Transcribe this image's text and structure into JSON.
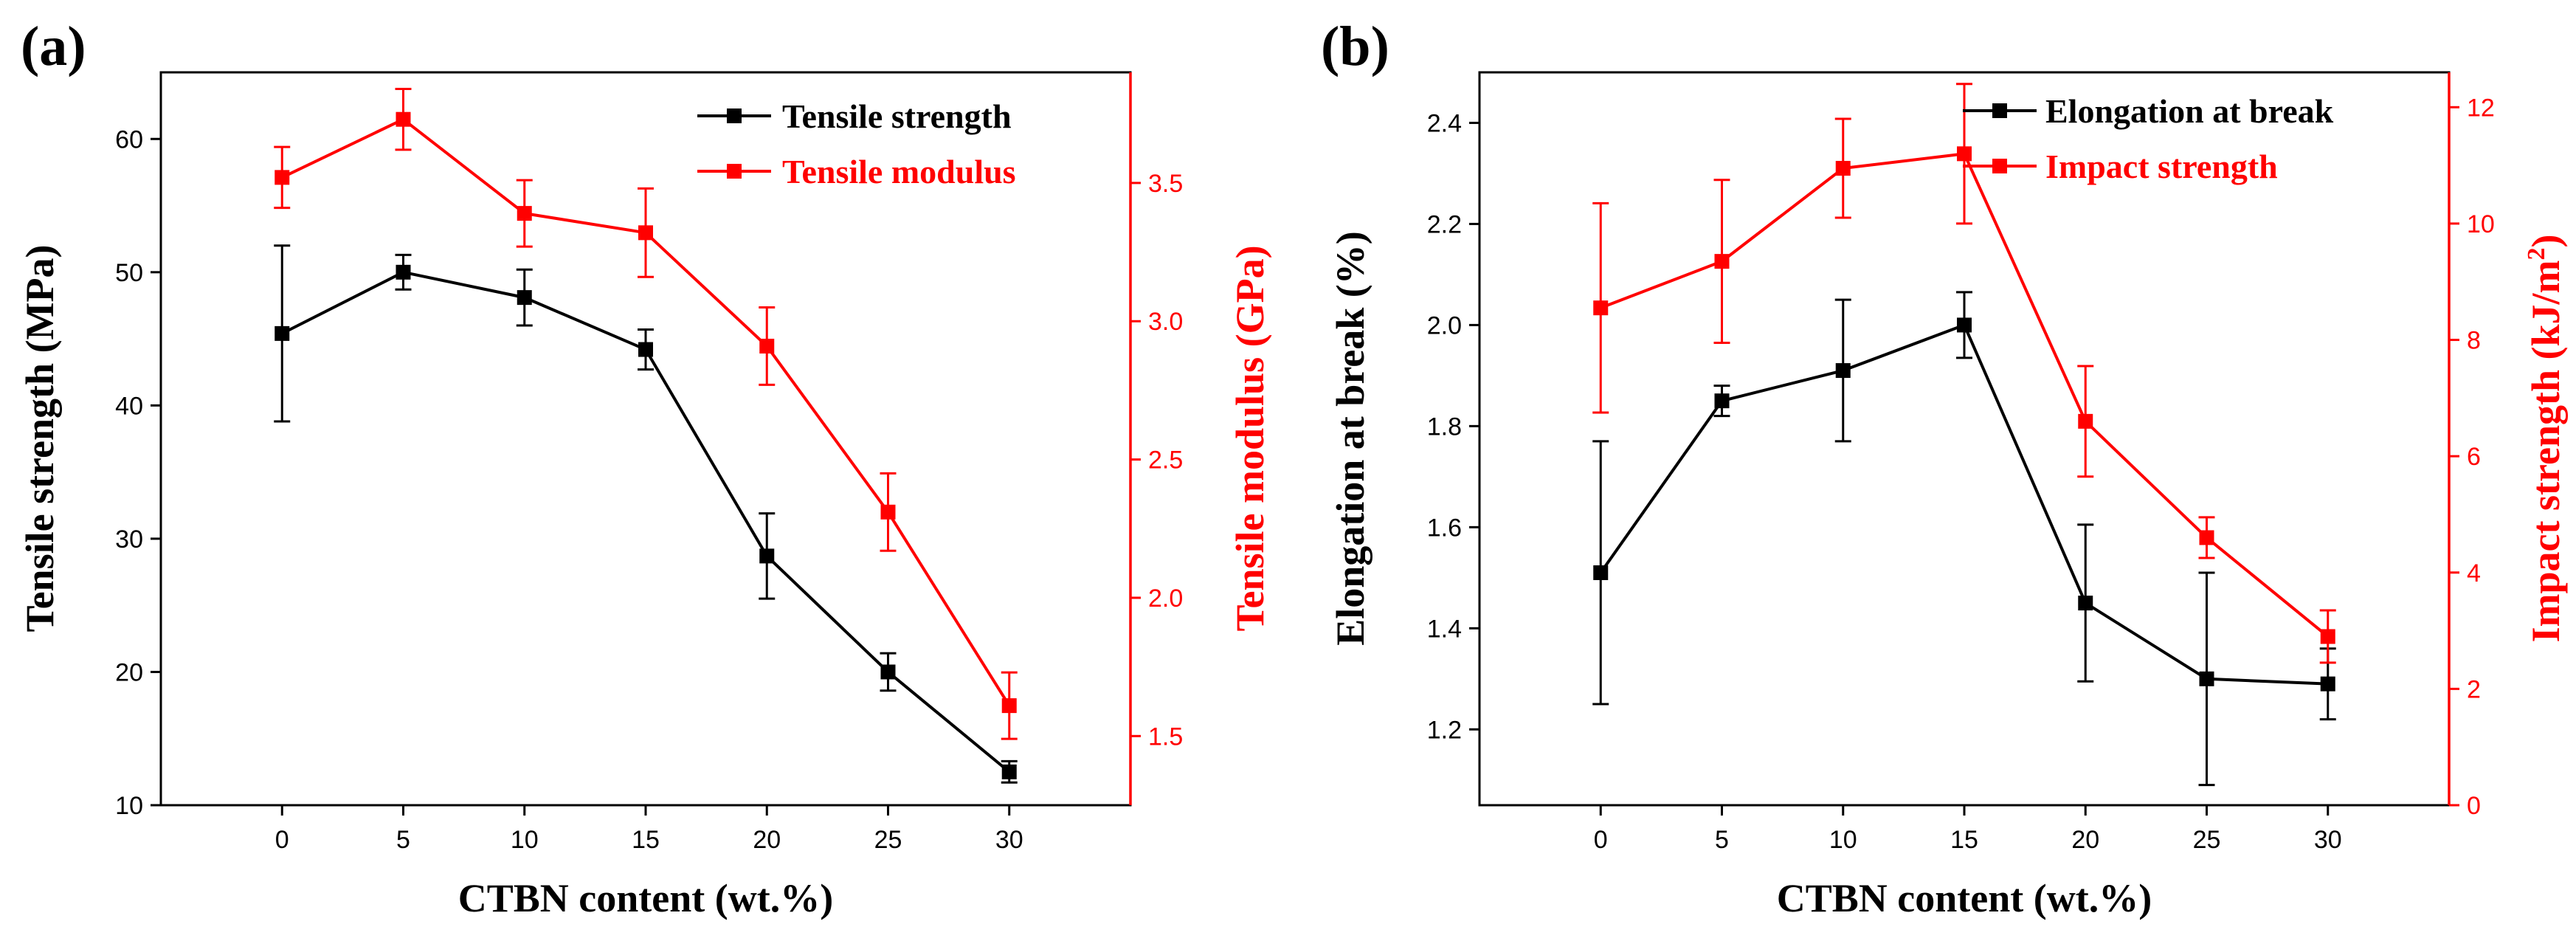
{
  "chart_data": [
    {
      "type": "line",
      "panel_label": "(a)",
      "xlabel": "CTBN content (wt.%)",
      "x": [
        0,
        5,
        10,
        15,
        20,
        25,
        30
      ],
      "x_ticks": [
        "0",
        "5",
        "10",
        "15",
        "20",
        "25",
        "30"
      ],
      "xlim": [
        -5,
        35
      ],
      "left_axis": {
        "label": "Tensile strength (MPa)",
        "color": "#000000",
        "lim": [
          10,
          65
        ],
        "ticks": [
          "10",
          "20",
          "30",
          "40",
          "50",
          "60"
        ]
      },
      "right_axis": {
        "label": "Tensile modulus (GPa)",
        "color": "#ff0000",
        "lim": [
          1.25,
          3.9
        ],
        "ticks": [
          "1.5",
          "2.0",
          "2.5",
          "3.0",
          "3.5"
        ]
      },
      "legend_position": "top-right",
      "series": [
        {
          "name": "Tensile strength",
          "axis": "left",
          "color": "#000000",
          "values": [
            45.4,
            50.0,
            48.1,
            44.2,
            28.7,
            20.0,
            12.5
          ],
          "errors": [
            6.6,
            1.3,
            2.1,
            1.5,
            3.2,
            1.4,
            0.8
          ]
        },
        {
          "name": "Tensile modulus",
          "axis": "right",
          "color": "#ff0000",
          "values": [
            3.52,
            3.73,
            3.39,
            3.32,
            2.91,
            2.31,
            1.61
          ],
          "errors": [
            0.11,
            0.11,
            0.12,
            0.16,
            0.14,
            0.14,
            0.12
          ]
        }
      ]
    },
    {
      "type": "line",
      "panel_label": "(b)",
      "xlabel": "CTBN content (wt.%)",
      "x": [
        0,
        5,
        10,
        15,
        20,
        25,
        30
      ],
      "x_ticks": [
        "0",
        "5",
        "10",
        "15",
        "20",
        "25",
        "30"
      ],
      "xlim": [
        -5,
        35
      ],
      "left_axis": {
        "label": "Elongation at break (%)",
        "color": "#000000",
        "lim": [
          1.05,
          2.5
        ],
        "ticks": [
          "1.2",
          "1.4",
          "1.6",
          "1.8",
          "2.0",
          "2.2",
          "2.4"
        ]
      },
      "right_axis": {
        "label_main": "Impact strength (kJ/m",
        "label_sup": "2",
        "label_end": ")",
        "color": "#ff0000",
        "lim": [
          0,
          12.6
        ],
        "ticks": [
          "0",
          "2",
          "4",
          "6",
          "8",
          "10",
          "12"
        ]
      },
      "legend_position": "top-right",
      "series": [
        {
          "name": "Elongation at break",
          "axis": "left",
          "color": "#000000",
          "values": [
            1.51,
            1.85,
            1.91,
            2.0,
            1.45,
            1.3,
            1.29
          ],
          "errors": [
            0.26,
            0.03,
            0.14,
            0.065,
            0.155,
            0.21,
            0.07
          ]
        },
        {
          "name": "Impact strength",
          "axis": "right",
          "color": "#ff0000",
          "values": [
            8.55,
            9.35,
            10.95,
            11.2,
            6.6,
            4.6,
            2.9
          ],
          "errors": [
            1.8,
            1.4,
            0.85,
            1.2,
            0.95,
            0.35,
            0.45
          ]
        }
      ]
    }
  ]
}
